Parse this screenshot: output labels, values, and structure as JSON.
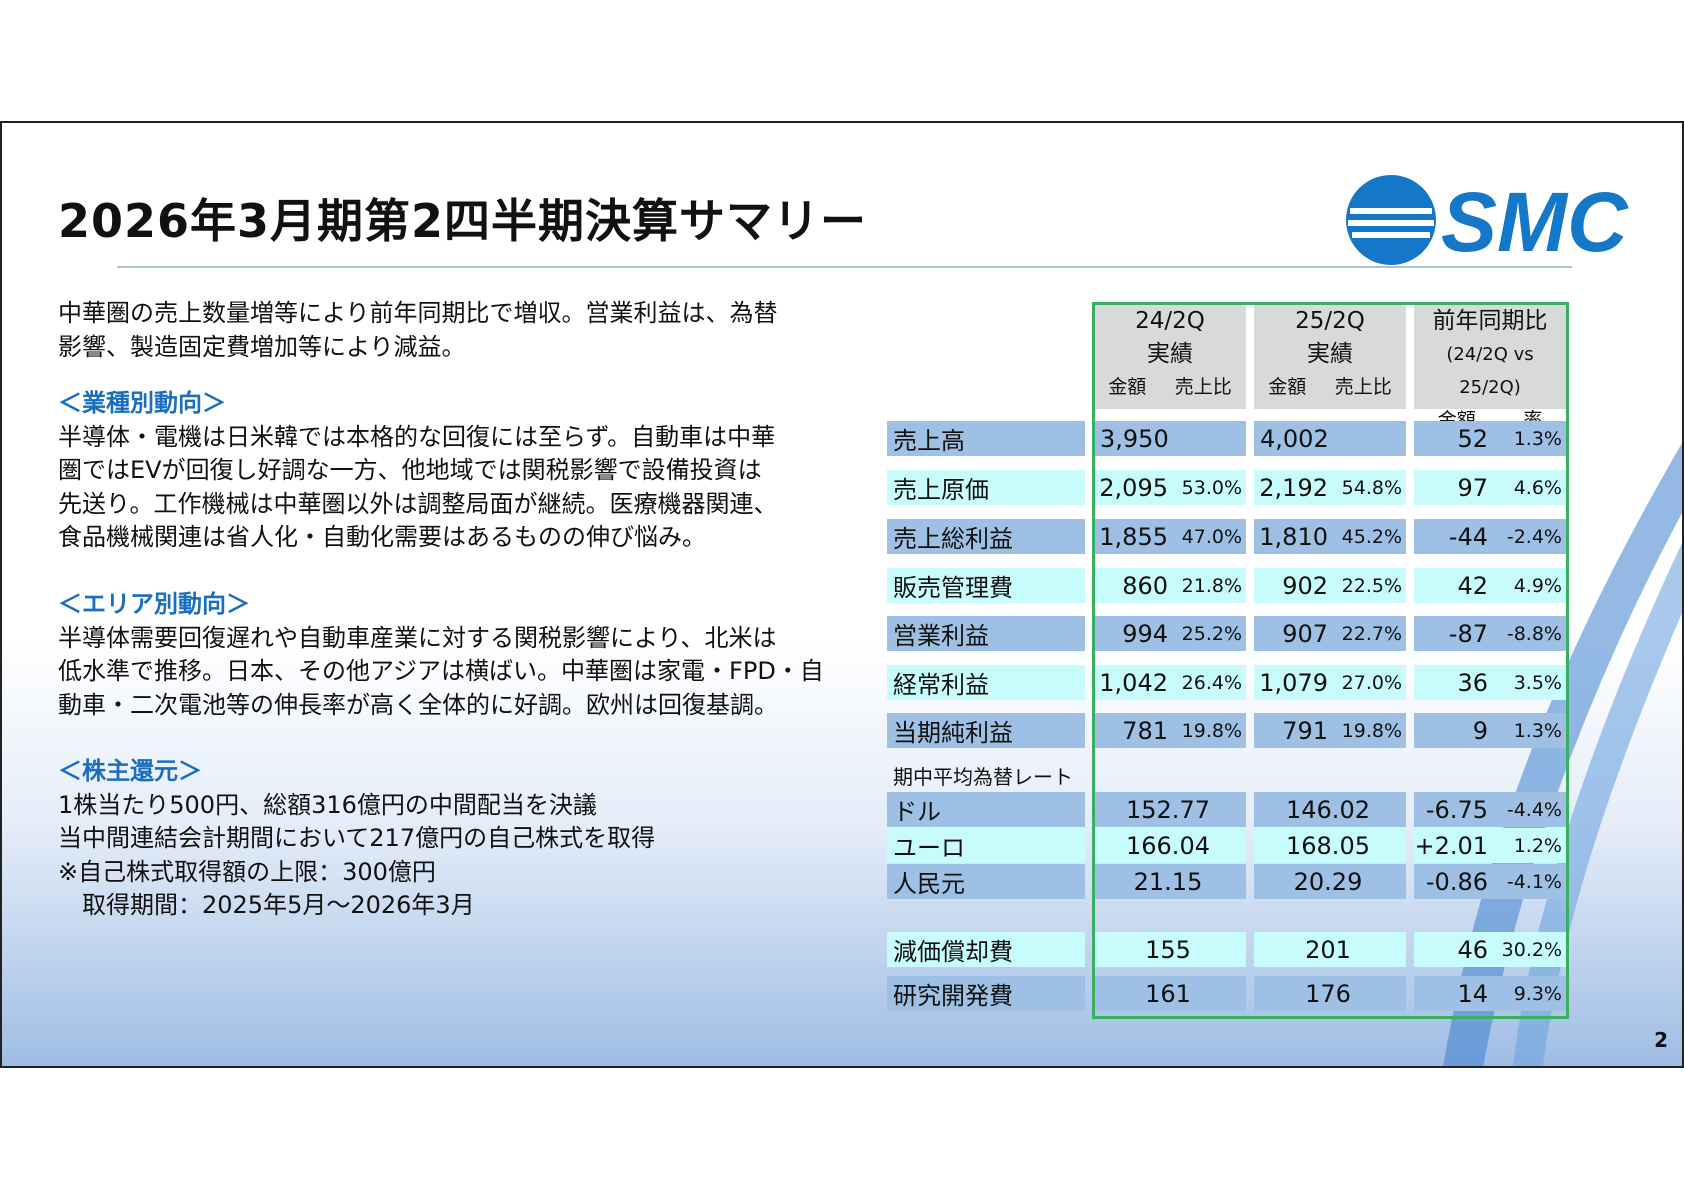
{
  "title": "2026年3月期第2四半期決算サマリー",
  "logo": "SMC",
  "page_number": "2",
  "summary": [
    "中華圏の売上数量増等により前年同期比で増収。営業利益は、為替",
    "影響、製造固定費増加等により減益。"
  ],
  "industry": {
    "heading": "＜業種別動向＞",
    "lines": [
      "半導体・電機は日米韓では本格的な回復には至らず。自動車は中華",
      "圏ではEVが回復し好調な一方、他地域では関税影響で設備投資は",
      "先送り。工作機械は中華圏以外は調整局面が継続。医療機器関連、",
      "食品機械関連は省人化・自動化需要はあるものの伸び悩み。"
    ]
  },
  "area": {
    "heading": "＜エリア別動向＞",
    "lines": [
      "半導体需要回復遅れや自動車産業に対する関税影響により、北米は",
      "低水準で推移。日本、その他アジアは横ばい。中華圏は家電・FPD・自",
      "動車・二次電池等の伸長率が高く全体的に好調。欧州は回復基調。"
    ]
  },
  "shareholder": {
    "heading": "＜株主還元＞",
    "lines": [
      "1株当たり500円、総額316億円の中間配当を決議",
      "当中間連結会計期間において217億円の自己株式を取得",
      "※自己株式取得額の上限：300億円",
      "　取得期間：2025年5月～2026年3月"
    ]
  },
  "table": {
    "headers": [
      {
        "l1": "24/2Q",
        "l2": "実績",
        "a": "金額",
        "b": "売上比"
      },
      {
        "l1": "25/2Q",
        "l2": "実績",
        "a": "金額",
        "b": "売上比"
      },
      {
        "l1": "前年同期比",
        "l2": "(24/2Q vs 25/2Q)",
        "a": "金額",
        "b": "率"
      }
    ],
    "rows": [
      {
        "label": "売上高",
        "v": [
          [
            "3,950",
            ""
          ],
          [
            "4,002",
            ""
          ],
          [
            "52",
            "1.3%"
          ]
        ]
      },
      {
        "label": "売上原価",
        "v": [
          [
            "2,095",
            "53.0%"
          ],
          [
            "2,192",
            "54.8%"
          ],
          [
            "97",
            "4.6%"
          ]
        ]
      },
      {
        "label": "売上総利益",
        "v": [
          [
            "1,855",
            "47.0%"
          ],
          [
            "1,810",
            "45.2%"
          ],
          [
            "-44",
            "-2.4%"
          ]
        ]
      },
      {
        "label": "販売管理費",
        "v": [
          [
            "860",
            "21.8%"
          ],
          [
            "902",
            "22.5%"
          ],
          [
            "42",
            "4.9%"
          ]
        ]
      },
      {
        "label": "営業利益",
        "v": [
          [
            "994",
            "25.2%"
          ],
          [
            "907",
            "22.7%"
          ],
          [
            "-87",
            "-8.8%"
          ]
        ]
      },
      {
        "label": "経常利益",
        "v": [
          [
            "1,042",
            "26.4%"
          ],
          [
            "1,079",
            "27.0%"
          ],
          [
            "36",
            "3.5%"
          ]
        ]
      },
      {
        "label": "当期純利益",
        "v": [
          [
            "781",
            "19.8%"
          ],
          [
            "791",
            "19.8%"
          ],
          [
            "9",
            "1.3%"
          ]
        ]
      }
    ],
    "fx_heading": "期中平均為替レート",
    "fx": [
      {
        "label": "ドル",
        "v": [
          [
            "152.77",
            ""
          ],
          [
            "146.02",
            ""
          ],
          [
            "-6.75",
            "-4.4%"
          ]
        ]
      },
      {
        "label": "ユーロ",
        "v": [
          [
            "166.04",
            ""
          ],
          [
            "168.05",
            ""
          ],
          [
            "+2.01",
            "1.2%"
          ]
        ]
      },
      {
        "label": "人民元",
        "v": [
          [
            "21.15",
            ""
          ],
          [
            "20.29",
            ""
          ],
          [
            "-0.86",
            "-4.1%"
          ]
        ]
      }
    ],
    "other": [
      {
        "label": "減価償却費",
        "v": [
          [
            "155",
            ""
          ],
          [
            "201",
            ""
          ],
          [
            "46",
            "30.2%"
          ]
        ]
      },
      {
        "label": "研究開発費",
        "v": [
          [
            "161",
            ""
          ],
          [
            "176",
            ""
          ],
          [
            "14",
            "9.3%"
          ]
        ]
      }
    ]
  },
  "colors": {
    "dark_row": "#9dc0e4",
    "light_row": "#c8fcfc",
    "header": "#d9d9d9",
    "border": "#39b060",
    "heading": "#1a6ec0",
    "logo": "#1577c8"
  }
}
